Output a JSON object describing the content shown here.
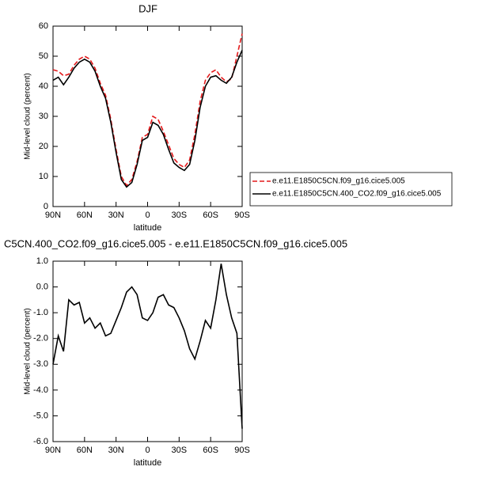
{
  "chart_data": [
    {
      "type": "line",
      "title": "DJF",
      "xlabel": "latitude",
      "ylabel": "Mid-level cloud (percent)",
      "x": [
        90,
        85,
        80,
        75,
        70,
        65,
        60,
        55,
        50,
        45,
        40,
        35,
        30,
        25,
        20,
        15,
        10,
        5,
        0,
        -5,
        -10,
        -15,
        -20,
        -25,
        -30,
        -35,
        -40,
        -45,
        -50,
        -55,
        -60,
        -65,
        -70,
        -75,
        -80,
        -85,
        -90
      ],
      "xlim": [
        90,
        -90
      ],
      "xticks": [
        {
          "value": 90,
          "label": "90N"
        },
        {
          "value": 60,
          "label": "60N"
        },
        {
          "value": 30,
          "label": "30N"
        },
        0,
        {
          "value": -30,
          "label": "30S"
        },
        {
          "value": -60,
          "label": "60S"
        },
        {
          "value": -90,
          "label": "90S"
        }
      ],
      "ylim": [
        0,
        60
      ],
      "yticks": [
        0,
        10,
        20,
        30,
        40,
        50,
        60
      ],
      "series": [
        {
          "name": "e.e11.E1850C5CN.f09_g16.cice5.005",
          "color": "#e41a1c",
          "dash": "dashed",
          "values": [
            45.5,
            45,
            43.5,
            44,
            47,
            49,
            50,
            49,
            46,
            41,
            37,
            29,
            19,
            10,
            7,
            9,
            15,
            23,
            24,
            30,
            29,
            25,
            20.5,
            16,
            14,
            13,
            15.5,
            24,
            35,
            42,
            44.5,
            45.5,
            43,
            41.5,
            42.5,
            50,
            57.5
          ]
        },
        {
          "name": "e.e11.E1850C5CN.400_CO2.f09_g16.cice5.005",
          "color": "#000000",
          "dash": "solid",
          "values": [
            42,
            43,
            40.5,
            43,
            46,
            48,
            49,
            48,
            45,
            40,
            36,
            28,
            18,
            9,
            6.5,
            8,
            14,
            22,
            23,
            28,
            27,
            24,
            19,
            14.5,
            13,
            12,
            14,
            22,
            33,
            40,
            43,
            43.5,
            42,
            41,
            43,
            48,
            52
          ]
        }
      ]
    },
    {
      "type": "line",
      "title": "C5CN.400_CO2.f09_g16.cice5.005 - e.e11.E1850C5CN.f09_g16.cice5.005",
      "xlabel": "latitude",
      "ylabel": "Mid-level cloud (percent)",
      "x": [
        90,
        85,
        80,
        75,
        70,
        65,
        60,
        55,
        50,
        45,
        40,
        35,
        30,
        25,
        20,
        15,
        10,
        5,
        0,
        -5,
        -10,
        -15,
        -20,
        -25,
        -30,
        -35,
        -40,
        -45,
        -50,
        -55,
        -60,
        -65,
        -70,
        -75,
        -80,
        -85,
        -90
      ],
      "xlim": [
        90,
        -90
      ],
      "xticks": [
        {
          "value": 90,
          "label": "90N"
        },
        {
          "value": 60,
          "label": "60N"
        },
        {
          "value": 30,
          "label": "30N"
        },
        0,
        {
          "value": -30,
          "label": "30S"
        },
        {
          "value": -60,
          "label": "60S"
        },
        {
          "value": -90,
          "label": "90S"
        }
      ],
      "ylim": [
        -6,
        1
      ],
      "yticks": [
        {
          "value": -6,
          "label": "-6.0"
        },
        {
          "value": -5,
          "label": "-5.0"
        },
        {
          "value": -4,
          "label": "-4.0"
        },
        {
          "value": -3,
          "label": "-3.0"
        },
        {
          "value": -2,
          "label": "-2.0"
        },
        {
          "value": -1,
          "label": "-1.0"
        },
        {
          "value": 0,
          "label": "0.0"
        },
        {
          "value": 1,
          "label": "1.0"
        }
      ],
      "series": [
        {
          "color": "#000000",
          "dash": "solid",
          "values": [
            -3.0,
            -1.9,
            -2.5,
            -0.5,
            -0.7,
            -0.6,
            -1.4,
            -1.2,
            -1.6,
            -1.4,
            -1.9,
            -1.8,
            -1.3,
            -0.8,
            -0.2,
            0.0,
            -0.3,
            -1.2,
            -1.3,
            -1.0,
            -0.4,
            -0.3,
            -0.7,
            -0.8,
            -1.2,
            -1.7,
            -2.4,
            -2.8,
            -2.1,
            -1.3,
            -1.6,
            -0.5,
            0.9,
            -0.3,
            -1.2,
            -1.8,
            -5.5
          ]
        }
      ]
    }
  ]
}
